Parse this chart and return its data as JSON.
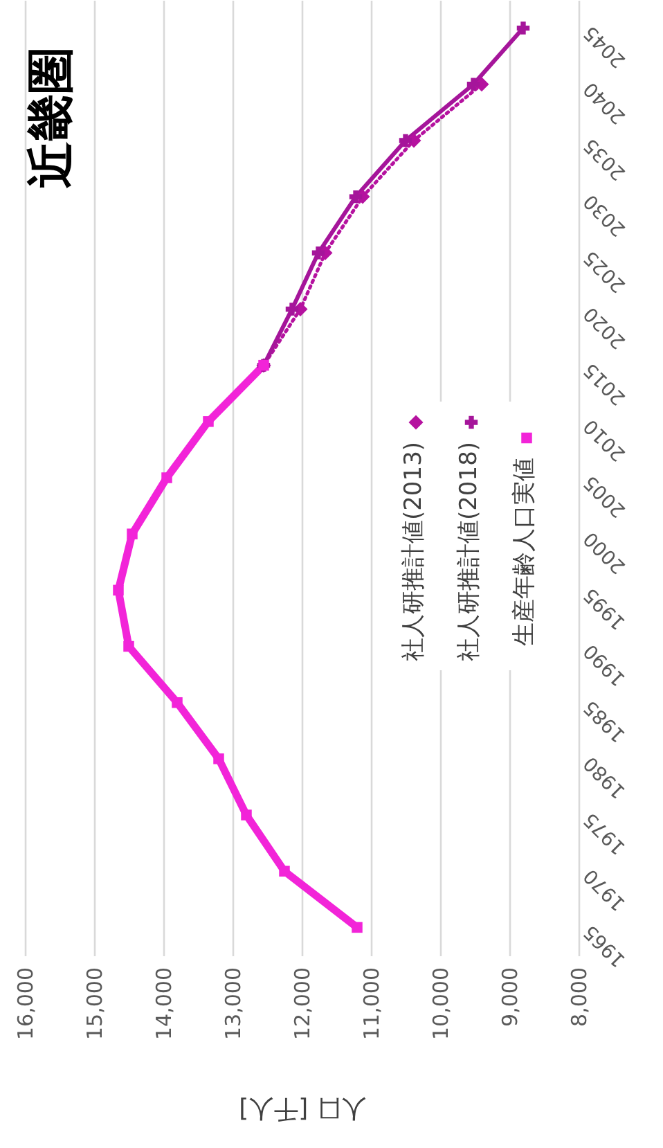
{
  "chart_data": {
    "type": "line",
    "orientation": "horizontal",
    "title": "近畿圏",
    "xlabel": "人口 [千人]",
    "categories": [
      "2045",
      "2040",
      "2035",
      "2030",
      "2025",
      "2020",
      "2015",
      "2010",
      "2005",
      "2000",
      "1995",
      "1990",
      "1985",
      "1980",
      "1975",
      "1970",
      "1965"
    ],
    "series": [
      {
        "name": "社人研推計値(2013)",
        "color": "#b5129f",
        "marker": "diamond",
        "line_style": "dotted",
        "values": [
          null,
          9400,
          10380,
          11120,
          11660,
          12020,
          12550,
          null,
          null,
          null,
          null,
          null,
          null,
          null,
          null,
          null,
          null
        ]
      },
      {
        "name": "社人研推計値(2018)",
        "color": "#a5159a",
        "marker": "cross",
        "line_style": "solid",
        "values": [
          8800,
          9520,
          10500,
          11220,
          11760,
          12140,
          12550,
          null,
          null,
          null,
          null,
          null,
          null,
          null,
          null,
          null,
          null
        ]
      },
      {
        "name": "生産年齢人口実値",
        "color": "#f224d8",
        "marker": "square",
        "line_style": "solid",
        "values": [
          null,
          null,
          null,
          null,
          null,
          null,
          12550,
          13350,
          13950,
          14450,
          14650,
          14500,
          13800,
          13200,
          12800,
          12250,
          11200
        ]
      }
    ],
    "xlim": [
      16000,
      8000
    ],
    "xticks": [
      {
        "value": 16000,
        "label": "16,000"
      },
      {
        "value": 15000,
        "label": "15,000"
      },
      {
        "value": 14000,
        "label": "14,000"
      },
      {
        "value": 13000,
        "label": "13,000"
      },
      {
        "value": 12000,
        "label": "12,000"
      },
      {
        "value": 11000,
        "label": "11,000"
      },
      {
        "value": 10000,
        "label": "10,000"
      },
      {
        "value": 9000,
        "label": "9,000"
      },
      {
        "value": 8000,
        "label": "8,000"
      }
    ],
    "grid": "x",
    "legend": "right"
  }
}
